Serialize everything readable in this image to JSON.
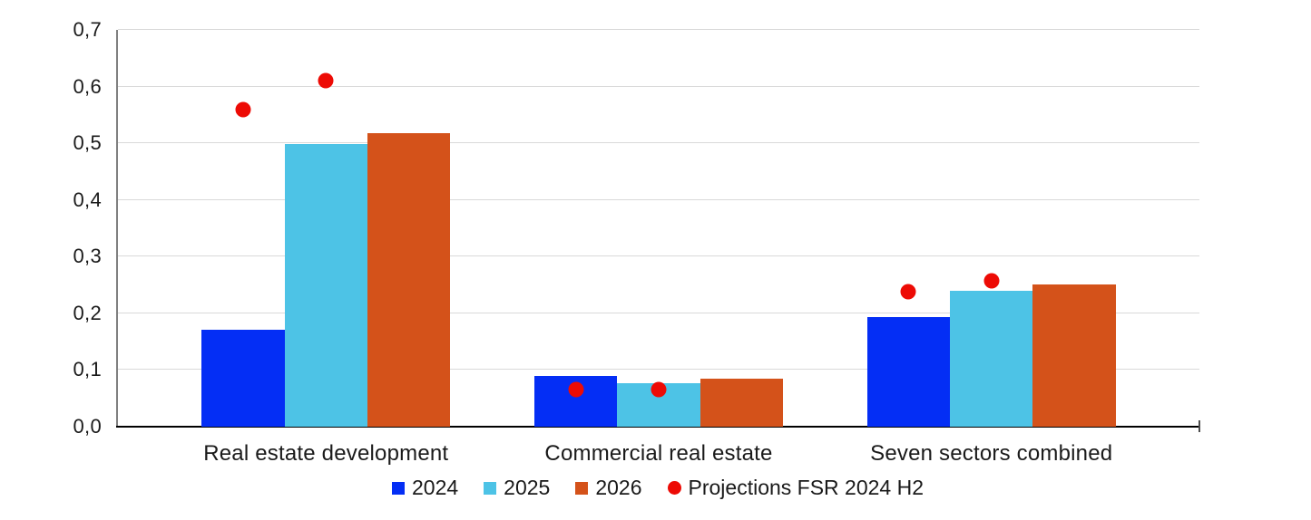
{
  "chart_data": {
    "type": "bar",
    "title": "",
    "categories": [
      "Real estate development",
      "Commercial real estate",
      "Seven sectors combined"
    ],
    "series": [
      {
        "name": "2024",
        "color": "#042ef5",
        "values": [
          0.171,
          0.09,
          0.194
        ]
      },
      {
        "name": "2025",
        "color": "#4dc3e6",
        "values": [
          0.498,
          0.076,
          0.24
        ]
      },
      {
        "name": "2026",
        "color": "#d4521a",
        "values": [
          0.518,
          0.084,
          0.251
        ]
      }
    ],
    "projections": {
      "name": "Projections FSR 2024 H2",
      "color": "#ed0b05",
      "marker": "circle",
      "values_per_category": [
        [
          0.56,
          0.61
        ],
        [
          0.066,
          0.066
        ],
        [
          0.238,
          0.258
        ]
      ],
      "positioned_over_series": [
        "2024",
        "2025"
      ]
    },
    "ylim": [
      0,
      0.7
    ],
    "ytick_labels": [
      "0,0",
      "0,1",
      "0,2",
      "0,3",
      "0,4",
      "0,5",
      "0,6",
      "0,7"
    ],
    "ytick_values": [
      0,
      0.1,
      0.2,
      0.3,
      0.4,
      0.5,
      0.6,
      0.7
    ],
    "decimal_separator": ",",
    "grid": true,
    "legend_position": "bottom",
    "axis_colors": {
      "gridline": "#d9d9d9",
      "y_axis_line": "#808080",
      "x_axis_line": "#000000",
      "text": "#1a1a1a"
    }
  }
}
